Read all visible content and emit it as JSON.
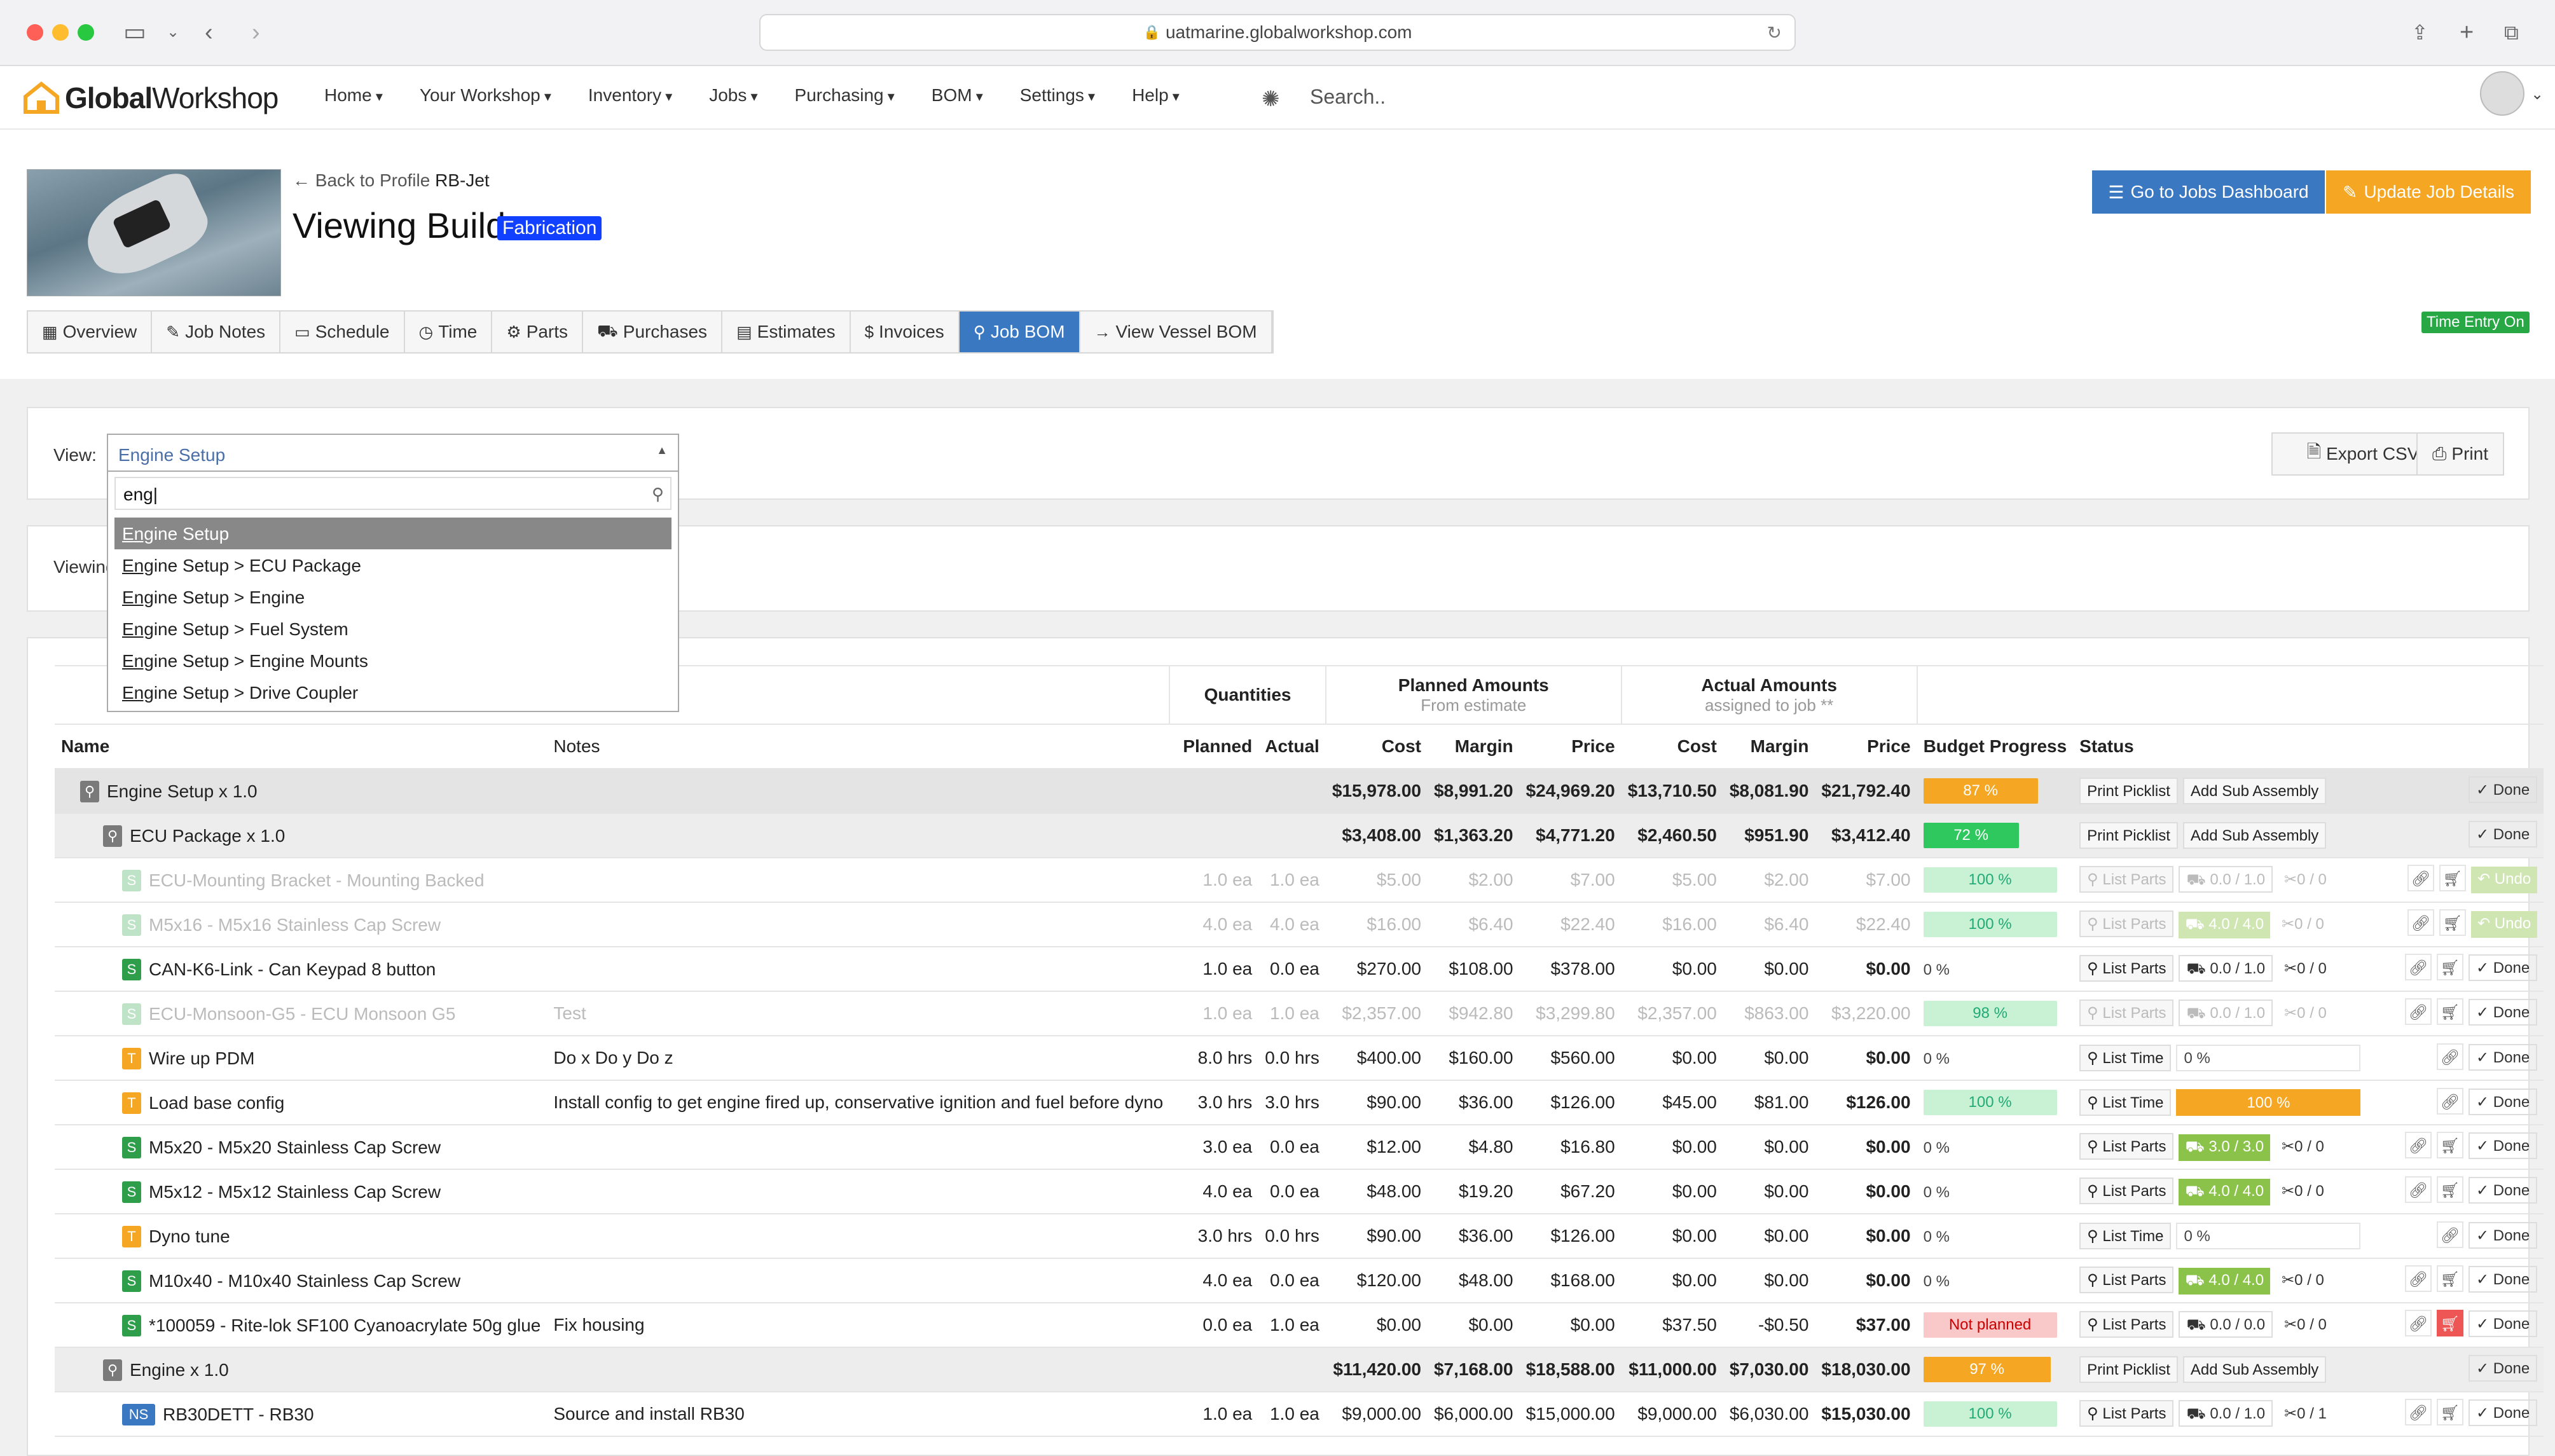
{
  "browser": {
    "url": "uatmarine.globalworkshop.com"
  },
  "nav": {
    "logo_bold": "Global",
    "logo_rest": "Workshop",
    "menu": [
      "Home",
      "Your Workshop",
      "Inventory",
      "Jobs",
      "Purchasing",
      "BOM",
      "Settings",
      "Help"
    ],
    "search_placeholder": "Search.."
  },
  "header": {
    "back_text": "Back to Profile",
    "back_target": "RB-Jet",
    "title": "Viewing Build",
    "badge": "Fabrication",
    "btn_jobs": "Go to Jobs Dashboard",
    "btn_update": "Update Job Details",
    "time_entry": "Time Entry On"
  },
  "tabs": [
    "Overview",
    "Job Notes",
    "Schedule",
    "Time",
    "Parts",
    "Purchases",
    "Estimates",
    "Invoices",
    "Job BOM",
    "View Vessel BOM"
  ],
  "view": {
    "label": "View:",
    "selected": "Engine Setup",
    "search_value": "eng",
    "options_prefix": "Eng",
    "options": [
      "ine Setup",
      "ine Setup > ECU Package",
      "ine Setup > Engine",
      "ine Setup > Fuel System",
      "ine Setup > Engine Mounts",
      "ine Setup > Drive Coupler"
    ],
    "export": "Export CSV",
    "print": "Print",
    "viewing_label": "Viewing"
  },
  "table": {
    "group_quantities": "Quantities",
    "group_planned": "Planned Amounts",
    "group_planned_sub": "From estimate",
    "group_actual": "Actual Amounts",
    "group_actual_sub": "assigned to job **",
    "columns": [
      "Name",
      "Notes",
      "Planned",
      "Actual",
      "Cost",
      "Margin",
      "Price",
      "Cost",
      "Margin",
      "Price",
      "Budget Progress",
      "Status"
    ],
    "rows": [
      {
        "level": 1,
        "name": "Engine Setup x 1.0",
        "notes": "",
        "planned": "",
        "actual": "",
        "pc": "$15,978.00",
        "pm": "$8,991.20",
        "pp": "$24,969.20",
        "ac": "$13,710.50",
        "am": "$8,081.90",
        "ap": "$21,792.40",
        "progress": "87 %",
        "pcolor": "orange",
        "pw": "180"
      },
      {
        "level": 2,
        "name": "ECU Package x 1.0",
        "notes": "",
        "planned": "",
        "actual": "",
        "pc": "$3,408.00",
        "pm": "$1,363.20",
        "pp": "$4,771.20",
        "ac": "$2,460.50",
        "am": "$951.90",
        "ap": "$3,412.40",
        "progress": "72 %",
        "pcolor": "green",
        "pw": "150"
      },
      {
        "level": 3,
        "type": "S",
        "faded": true,
        "name": "ECU-Mounting Bracket - Mounting Backed",
        "notes": "",
        "planned": "1.0 ea",
        "actual": "1.0 ea",
        "pc": "$5.00",
        "pm": "$2.00",
        "pp": "$7.00",
        "ac": "$5.00",
        "am": "$2.00",
        "ap": "$7.00",
        "progress": "100 %",
        "pcolor": "light",
        "pick": "0.0 / 1.0",
        "pickg": false,
        "ret": "0 / 0",
        "undo": true
      },
      {
        "level": 3,
        "type": "S",
        "faded": true,
        "name": "M5x16 - M5x16 Stainless Cap Screw",
        "notes": "",
        "planned": "4.0 ea",
        "actual": "4.0 ea",
        "pc": "$16.00",
        "pm": "$6.40",
        "pp": "$22.40",
        "ac": "$16.00",
        "am": "$6.40",
        "ap": "$22.40",
        "progress": "100 %",
        "pcolor": "light",
        "pick": "4.0 / 4.0",
        "pickg": true,
        "ret": "0 / 0",
        "undo": true
      },
      {
        "level": 3,
        "type": "S",
        "name": "CAN-K6-Link - Can Keypad 8 button",
        "notes": "",
        "planned": "1.0 ea",
        "actual": "0.0 ea",
        "pc": "$270.00",
        "pm": "$108.00",
        "pp": "$378.00",
        "ac": "$0.00",
        "am": "$0.00",
        "ap": "$0.00",
        "progress": "0 %",
        "pcolor": "zero",
        "pick": "0.0 / 1.0",
        "pickg": false,
        "ret": "0 / 0"
      },
      {
        "level": 3,
        "type": "S",
        "faded": true,
        "name": "ECU-Monsoon-G5 - ECU Monsoon G5",
        "notes": "Test",
        "planned": "1.0 ea",
        "actual": "1.0 ea",
        "pc": "$2,357.00",
        "pm": "$942.80",
        "pp": "$3,299.80",
        "ac": "$2,357.00",
        "am": "$863.00",
        "ap": "$3,220.00",
        "progress": "98 %",
        "pcolor": "light",
        "pick": "0.0 / 1.0",
        "pickg": false,
        "ret": "0 / 0"
      },
      {
        "level": 3,
        "type": "T",
        "name": "Wire up PDM",
        "notes": "Do x Do y Do z",
        "planned": "8.0 hrs",
        "actual": "0.0 hrs",
        "pc": "$400.00",
        "pm": "$160.00",
        "pp": "$560.00",
        "ac": "$0.00",
        "am": "$0.00",
        "ap": "$0.00",
        "progress": "0 %",
        "pcolor": "zero",
        "time": "0 %"
      },
      {
        "level": 3,
        "type": "T",
        "name": "Load base config",
        "notes": "Install config to get engine fired up, conservative ignition and fuel before dyno",
        "planned": "3.0 hrs",
        "actual": "3.0 hrs",
        "pc": "$90.00",
        "pm": "$36.00",
        "pp": "$126.00",
        "ac": "$45.00",
        "am": "$81.00",
        "ap": "$126.00",
        "progress": "100 %",
        "pcolor": "light",
        "time": "100 %",
        "timefull": true
      },
      {
        "level": 3,
        "type": "S",
        "name": "M5x20 - M5x20 Stainless Cap Screw",
        "notes": "",
        "planned": "3.0 ea",
        "actual": "0.0 ea",
        "pc": "$12.00",
        "pm": "$4.80",
        "pp": "$16.80",
        "ac": "$0.00",
        "am": "$0.00",
        "ap": "$0.00",
        "progress": "0 %",
        "pcolor": "zero",
        "pick": "3.0 / 3.0",
        "pickg": true,
        "ret": "0 / 0"
      },
      {
        "level": 3,
        "type": "S",
        "name": "M5x12 - M5x12 Stainless Cap Screw",
        "notes": "",
        "planned": "4.0 ea",
        "actual": "0.0 ea",
        "pc": "$48.00",
        "pm": "$19.20",
        "pp": "$67.20",
        "ac": "$0.00",
        "am": "$0.00",
        "ap": "$0.00",
        "progress": "0 %",
        "pcolor": "zero",
        "pick": "4.0 / 4.0",
        "pickg": true,
        "ret": "0 / 0"
      },
      {
        "level": 3,
        "type": "T",
        "name": "Dyno tune",
        "notes": "",
        "planned": "3.0 hrs",
        "actual": "0.0 hrs",
        "pc": "$90.00",
        "pm": "$36.00",
        "pp": "$126.00",
        "ac": "$0.00",
        "am": "$0.00",
        "ap": "$0.00",
        "progress": "0 %",
        "pcolor": "zero",
        "time": "0 %"
      },
      {
        "level": 3,
        "type": "S",
        "name": "M10x40 - M10x40 Stainless Cap Screw",
        "notes": "",
        "planned": "4.0 ea",
        "actual": "0.0 ea",
        "pc": "$120.00",
        "pm": "$48.00",
        "pp": "$168.00",
        "ac": "$0.00",
        "am": "$0.00",
        "ap": "$0.00",
        "progress": "0 %",
        "pcolor": "zero",
        "pick": "4.0 / 4.0",
        "pickg": true,
        "ret": "0 / 0"
      },
      {
        "level": 3,
        "type": "S",
        "name": "*100059 - Rite-lok SF100 Cyanoacrylate 50g glue",
        "notes": "Fix housing",
        "planned": "0.0 ea",
        "actual": "1.0 ea",
        "pc": "$0.00",
        "pm": "$0.00",
        "pp": "$0.00",
        "ac": "$37.50",
        "am": "-$0.50",
        "ap": "$37.00",
        "progress": "Not planned",
        "pcolor": "red",
        "pick": "0.0 / 0.0",
        "pickg": false,
        "ret": "0 / 0",
        "redcart": true
      },
      {
        "level": 2,
        "name": "Engine x 1.0",
        "notes": "",
        "planned": "",
        "actual": "",
        "pc": "$11,420.00",
        "pm": "$7,168.00",
        "pp": "$18,588.00",
        "ac": "$11,000.00",
        "am": "$7,030.00",
        "ap": "$18,030.00",
        "progress": "97 %",
        "pcolor": "orange",
        "pw": "200"
      },
      {
        "level": 3,
        "type": "NS",
        "name": "RB30DETT - RB30",
        "notes": "Source and install RB30",
        "planned": "1.0 ea",
        "actual": "1.0 ea",
        "pc": "$9,000.00",
        "pm": "$6,000.00",
        "pp": "$15,000.00",
        "ac": "$9,000.00",
        "am": "$6,030.00",
        "ap": "$15,030.00",
        "progress": "100 %",
        "pcolor": "light",
        "pick": "0.0 / 1.0",
        "pickg": false,
        "ret": "0 / 1"
      }
    ],
    "labels": {
      "print_picklist": "Print Picklist",
      "add_sub": "Add Sub Assembly",
      "done": "Done",
      "undo": "Undo",
      "list_parts": "List Parts",
      "list_time": "List Time"
    }
  }
}
